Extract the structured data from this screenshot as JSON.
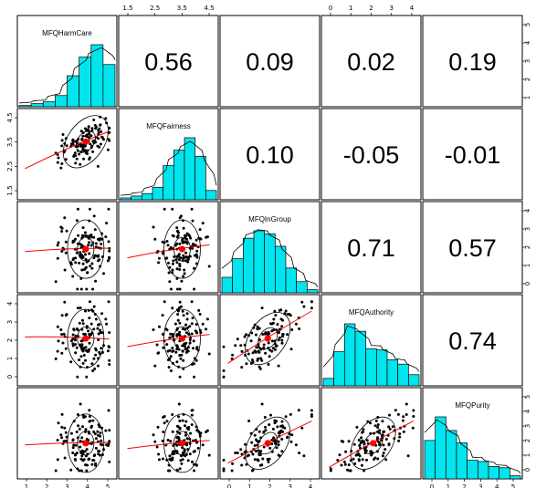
{
  "chart_data": {
    "type": "scatter-matrix",
    "variables": [
      "MFQHarmCare",
      "MFQFairness",
      "MFQInGroup",
      "MFQAuthority",
      "MFQPurity"
    ],
    "correlations": [
      {
        "row": 0,
        "col": 1,
        "label": "0.56"
      },
      {
        "row": 0,
        "col": 2,
        "label": "0.09"
      },
      {
        "row": 0,
        "col": 3,
        "label": "0.02"
      },
      {
        "row": 0,
        "col": 4,
        "label": "0.19"
      },
      {
        "row": 1,
        "col": 2,
        "label": "0.10"
      },
      {
        "row": 1,
        "col": 3,
        "label": "-0.05"
      },
      {
        "row": 1,
        "col": 4,
        "label": "-0.01"
      },
      {
        "row": 2,
        "col": 3,
        "label": "0.71"
      },
      {
        "row": 2,
        "col": 4,
        "label": "0.57"
      },
      {
        "row": 3,
        "col": 4,
        "label": "0.74"
      }
    ],
    "ranges": [
      [
        0.5,
        5.2
      ],
      [
        1.2,
        4.9
      ],
      [
        0,
        4.4
      ],
      [
        -0.3,
        4.5
      ],
      [
        -0.3,
        5.2
      ]
    ],
    "means": [
      3.8,
      3.6,
      2.1,
      2.2,
      1.8
    ],
    "hist_bars": [
      [
        0.02,
        0.05,
        0.08,
        0.18,
        0.5,
        0.8,
        1.0,
        0.68
      ],
      [
        0.03,
        0.06,
        0.1,
        0.2,
        0.55,
        0.8,
        1.0,
        0.7,
        0.15
      ],
      [
        0.25,
        0.55,
        0.88,
        1.0,
        0.95,
        0.75,
        0.4,
        0.18,
        0.05
      ],
      [
        0.12,
        0.55,
        1.0,
        0.88,
        0.6,
        0.58,
        0.42,
        0.35,
        0.18
      ],
      [
        0.62,
        1.0,
        0.78,
        0.58,
        0.3,
        0.28,
        0.2,
        0.18,
        0.05
      ]
    ],
    "axis_ticks": {
      "top": [
        {
          "col": 1,
          "labels": [
            "1.5",
            "2.5",
            "3.5",
            "4.5"
          ]
        },
        {
          "col": 3,
          "labels": [
            "0",
            "1",
            "2",
            "3",
            "4"
          ]
        }
      ],
      "bottom": [
        {
          "col": 0,
          "labels": [
            "1",
            "2",
            "3",
            "4",
            "5"
          ]
        },
        {
          "col": 2,
          "labels": [
            "0",
            "1",
            "2",
            "3",
            "4"
          ]
        },
        {
          "col": 4,
          "labels": [
            "0",
            "1",
            "2",
            "3",
            "4",
            "5"
          ]
        }
      ],
      "left": [
        {
          "row": 1,
          "labels": [
            "1.5",
            "2.5",
            "3.5",
            "4.5"
          ]
        },
        {
          "row": 3,
          "labels": [
            "0",
            "1",
            "2",
            "3",
            "4"
          ]
        }
      ],
      "right": [
        {
          "row": 0,
          "labels": [
            "1",
            "2",
            "3",
            "4",
            "5"
          ]
        },
        {
          "row": 2,
          "labels": [
            "0",
            "1",
            "2",
            "3",
            "4"
          ]
        },
        {
          "row": 4,
          "labels": [
            "0",
            "1",
            "2",
            "3",
            "4",
            "5"
          ]
        }
      ]
    },
    "colors": {
      "hist_fill": "#00e5ee",
      "mean_point": "#ff0000",
      "loess": "#ff0000",
      "points": "#000000"
    },
    "grid": false
  }
}
